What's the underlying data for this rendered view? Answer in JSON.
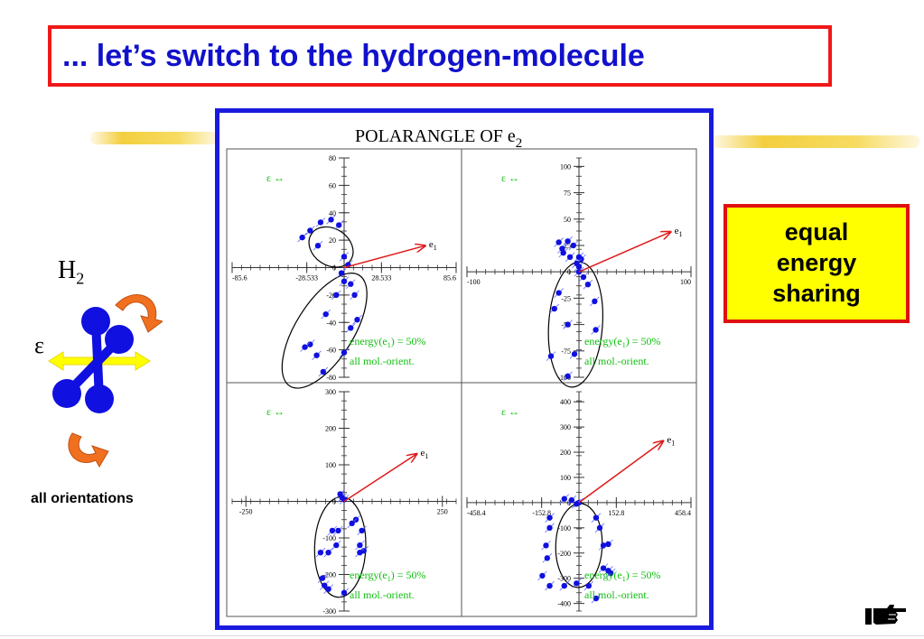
{
  "slide": {
    "title": "... let’s switch to the hydrogen-molecule",
    "side_box": [
      "equal",
      "energy",
      "sharing"
    ],
    "molecule_label": "H",
    "molecule_subscript": "2",
    "field_symbol": "ε",
    "orientation_label": "all orientations"
  },
  "colors": {
    "title_text": "#1111cc",
    "title_border": "#f01818",
    "figure_border": "#1a1adf",
    "side_box_fill": "#ffff00",
    "arrow": "#e01818",
    "data_points": "#1010e0",
    "panel_text": "#10c010",
    "field_arrow": "#ffff00",
    "atom": "#1010e0",
    "rotation_arrow": "#f07020"
  },
  "chart_data": {
    "type": "scatter",
    "title": "POLARANGLE OF e",
    "title_subscript": "2",
    "panels": [
      {
        "x_ticks": [
          "-85.6",
          "-28.533",
          "28.533",
          "85.6"
        ],
        "x_range": [
          -85.6,
          85.6
        ],
        "y_ticks": [
          "80",
          "60",
          "40",
          "20",
          "0",
          "-20",
          "-40",
          "-60",
          "-80"
        ],
        "y_range": [
          -80,
          80
        ],
        "field_label": "ε ↔",
        "vector_label": "e",
        "vector_subscript": "1",
        "vector_end": [
          62,
          16
        ],
        "energy_text": "energy(e",
        "energy_subscript": "1",
        "energy_value": ") = 50%",
        "orient_text": "all mol.-orient.",
        "points": [
          [
            -26,
            27
          ],
          [
            -10,
            35
          ],
          [
            -18,
            33
          ],
          [
            -4,
            31
          ],
          [
            -32,
            22
          ],
          [
            -20,
            16
          ],
          [
            0,
            8
          ],
          [
            3,
            2
          ],
          [
            -2,
            -4
          ],
          [
            5,
            -12
          ],
          [
            8,
            -20
          ],
          [
            -6,
            -20
          ],
          [
            -14,
            -34
          ],
          [
            10,
            -38
          ],
          [
            -26,
            -56
          ],
          [
            -21,
            -64
          ],
          [
            -30,
            -58
          ],
          [
            5,
            -44
          ],
          [
            0,
            -62
          ],
          [
            -16,
            -76
          ],
          [
            0,
            -10
          ]
        ],
        "lobes": [
          {
            "cx": -10,
            "cy": 15,
            "rx": 18,
            "ry": 14,
            "rot": 34
          },
          {
            "cx": -15,
            "cy": -46,
            "rx": 50,
            "ry": 22,
            "rot": -58
          }
        ]
      },
      {
        "x_ticks": [
          "-100",
          "100"
        ],
        "x_range": [
          -100,
          100
        ],
        "y_ticks": [
          "100",
          "75",
          "50",
          "25",
          "0",
          "-25",
          "-50",
          "-75",
          "-100"
        ],
        "y_range": [
          -100,
          108
        ],
        "field_label": "ε ↔",
        "vector_label": "e",
        "vector_subscript": "1",
        "vector_end": [
          82,
          38
        ],
        "energy_text": "energy(e",
        "energy_subscript": "1",
        "energy_value": ") = 50%",
        "orient_text": "all mol.-orient.",
        "points": [
          [
            -18,
            28
          ],
          [
            -10,
            29
          ],
          [
            -15,
            22
          ],
          [
            -5,
            25
          ],
          [
            -14,
            18
          ],
          [
            -8,
            14
          ],
          [
            0,
            14
          ],
          [
            2,
            12
          ],
          [
            -2,
            8
          ],
          [
            0,
            0
          ],
          [
            4,
            -5
          ],
          [
            8,
            -12
          ],
          [
            14,
            -28
          ],
          [
            -18,
            -20
          ],
          [
            -22,
            -35
          ],
          [
            -10,
            -50
          ],
          [
            15,
            -55
          ],
          [
            -25,
            -80
          ],
          [
            -10,
            -99
          ],
          [
            -4,
            -78
          ],
          [
            0,
            5
          ]
        ],
        "lobes": [
          {
            "cx": -3,
            "cy": -50,
            "rx": 56,
            "ry": 24,
            "rot": -86
          }
        ]
      },
      {
        "x_ticks": [
          "-250",
          "250"
        ],
        "x_range": [
          -285,
          285
        ],
        "y_ticks": [
          "300",
          "200",
          "100",
          "0",
          "-100",
          "-200",
          "-300"
        ],
        "y_range": [
          -300,
          300
        ],
        "field_label": "ε ↔",
        "vector_label": "e",
        "vector_subscript": "1",
        "vector_end": [
          185,
          130
        ],
        "energy_text": "energy(e",
        "energy_subscript": "1",
        "energy_value": ") = 50%",
        "orient_text": "all mol.-orient.",
        "points": [
          [
            -10,
            20
          ],
          [
            -5,
            10
          ],
          [
            0,
            5
          ],
          [
            -15,
            -80
          ],
          [
            -30,
            -80
          ],
          [
            -20,
            -120
          ],
          [
            -40,
            -140
          ],
          [
            -60,
            -140
          ],
          [
            -55,
            -210
          ],
          [
            -40,
            -240
          ],
          [
            -50,
            -230
          ],
          [
            0,
            -250
          ],
          [
            50,
            -135
          ],
          [
            40,
            -140
          ],
          [
            30,
            -50
          ],
          [
            45,
            -80
          ],
          [
            20,
            -60
          ],
          [
            40,
            -120
          ]
        ],
        "lobes": [
          {
            "cx": -10,
            "cy": -125,
            "rx": 128,
            "ry": 65,
            "rot": -88
          }
        ]
      },
      {
        "x_ticks": [
          "-458.4",
          "-152.8",
          "152.8",
          "458.4"
        ],
        "x_range": [
          -458.4,
          458.4
        ],
        "y_ticks": [
          "400",
          "300",
          "200",
          "100",
          "0",
          "-100",
          "-200",
          "-300",
          "-400"
        ],
        "y_range": [
          -430,
          440
        ],
        "field_label": "ε ↔",
        "vector_label": "e",
        "vector_subscript": "1",
        "vector_end": [
          345,
          245
        ],
        "energy_text": "energy(e",
        "energy_subscript": "1",
        "energy_value": ") = 50%",
        "orient_text": "all mol.-orient.",
        "points": [
          [
            -30,
            10
          ],
          [
            -60,
            15
          ],
          [
            0,
            0
          ],
          [
            -10,
            -5
          ],
          [
            -120,
            -60
          ],
          [
            -120,
            -100
          ],
          [
            -135,
            -170
          ],
          [
            -130,
            -220
          ],
          [
            -150,
            -290
          ],
          [
            -120,
            -330
          ],
          [
            -60,
            -330
          ],
          [
            -10,
            -320
          ],
          [
            40,
            -330
          ],
          [
            100,
            -260
          ],
          [
            120,
            -270
          ],
          [
            100,
            -170
          ],
          [
            85,
            -100
          ],
          [
            70,
            -60
          ],
          [
            120,
            -165
          ],
          [
            70,
            -380
          ],
          [
            130,
            -280
          ]
        ],
        "lobes": [
          {
            "cx": 0,
            "cy": -170,
            "rx": 172,
            "ry": 95,
            "rot": -88
          }
        ]
      }
    ]
  }
}
